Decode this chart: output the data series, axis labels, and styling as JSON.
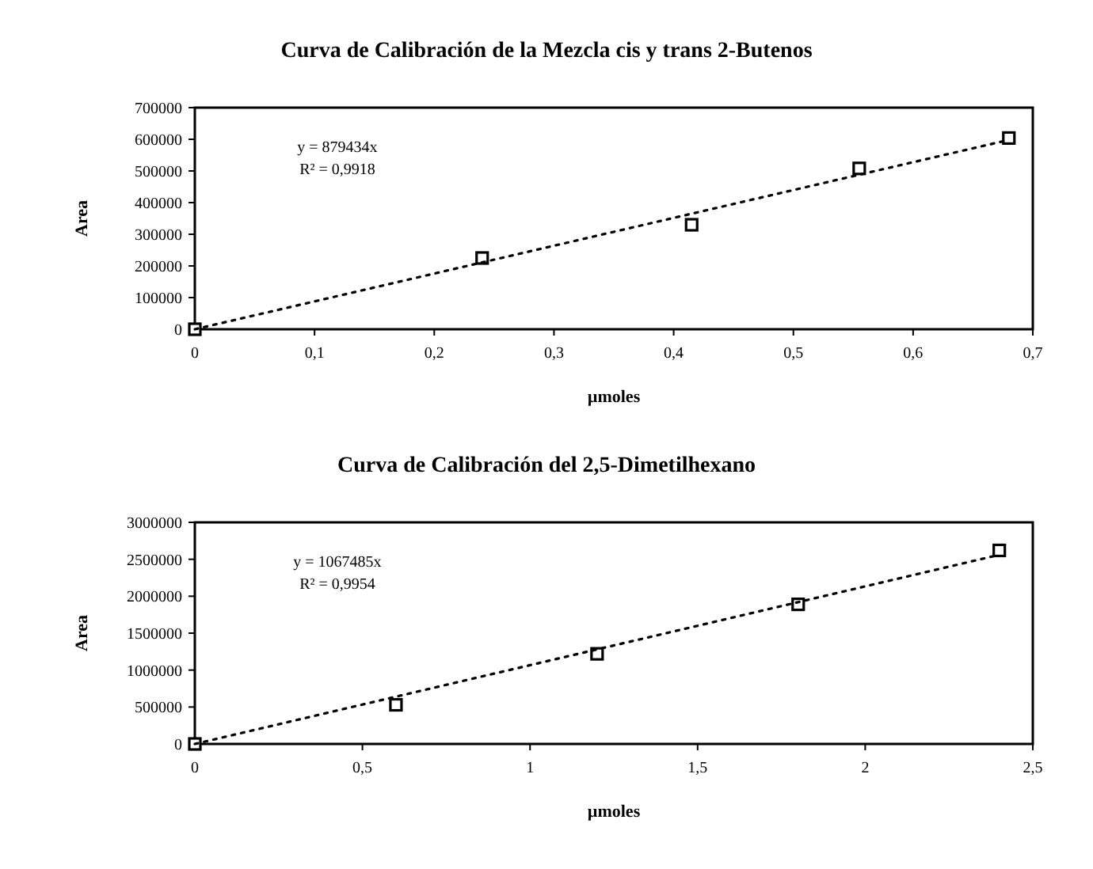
{
  "chart_data": [
    {
      "type": "scatter",
      "title": "Curva de Calibración de la Mezcla cis y trans 2-Butenos",
      "xlabel": "µmoles",
      "ylabel": "Area",
      "annotations": [
        "y = 879434x",
        "R² = 0,9918"
      ],
      "xlim": [
        0,
        0.7
      ],
      "ylim": [
        0,
        700000
      ],
      "xticks": [
        0,
        {
          "value": 0.1,
          "label": "0,1"
        },
        {
          "value": 0.2,
          "label": "0,2"
        },
        {
          "value": 0.3,
          "label": "0,3"
        },
        {
          "value": 0.4,
          "label": "0,4"
        },
        {
          "value": 0.5,
          "label": "0,5"
        },
        {
          "value": 0.6,
          "label": "0,6"
        },
        {
          "value": 0.7,
          "label": "0,7"
        }
      ],
      "yticks": [
        0,
        100000,
        200000,
        300000,
        400000,
        500000,
        600000,
        700000
      ],
      "grid": false,
      "series": [
        {
          "color": "#000000",
          "marker": "square",
          "x": [
            0,
            0.24,
            0.415,
            0.555,
            0.68
          ],
          "values": [
            0,
            225000,
            330000,
            508000,
            604000
          ]
        },
        {
          "type": "line",
          "color": "#000000",
          "marker": "none",
          "line_style": "dotted",
          "x": [
            0,
            0.68
          ],
          "values": [
            0,
            598000
          ]
        }
      ]
    },
    {
      "type": "scatter",
      "title": "Curva de Calibración del 2,5-Dimetilhexano",
      "xlabel": "µmoles",
      "ylabel": "Area",
      "annotations": [
        "y = 1067485x",
        "R² = 0,9954"
      ],
      "xlim": [
        0,
        2.5
      ],
      "ylim": [
        0,
        3000000
      ],
      "xticks": [
        0,
        {
          "value": 0.5,
          "label": "0,5"
        },
        1,
        {
          "value": 1.5,
          "label": "1,5"
        },
        2,
        {
          "value": 2.5,
          "label": "2,5"
        }
      ],
      "yticks": [
        0,
        500000,
        1000000,
        1500000,
        2000000,
        2500000,
        3000000
      ],
      "grid": false,
      "series": [
        {
          "color": "#000000",
          "marker": "square",
          "x": [
            0,
            0.6,
            1.2,
            1.8,
            2.4
          ],
          "values": [
            0,
            530000,
            1220000,
            1890000,
            2620000
          ]
        },
        {
          "type": "line",
          "color": "#000000",
          "marker": "none",
          "line_style": "dotted",
          "x": [
            0,
            2.4
          ],
          "values": [
            0,
            2560000
          ]
        }
      ]
    }
  ]
}
